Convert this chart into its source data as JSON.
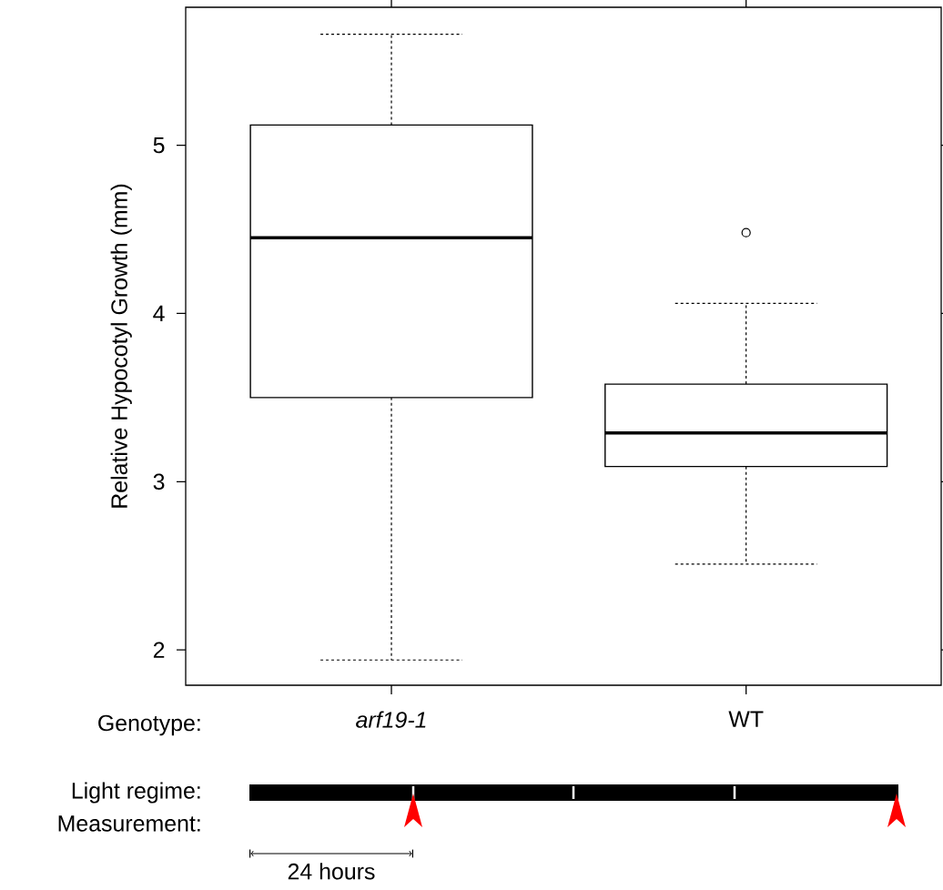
{
  "chart_data": {
    "type": "box",
    "ylabel": "Relative Hypocotyl Growth (mm)",
    "categories": [
      "*arf19-1*",
      "WT"
    ],
    "boxes": [
      {
        "low": 1.94,
        "q1": 3.5,
        "median": 4.45,
        "q3": 5.12,
        "high": 5.66
      },
      {
        "low": 2.51,
        "q1": 3.09,
        "median": 3.29,
        "q3": 3.58,
        "high": 4.06,
        "outliers": [
          4.48
        ]
      }
    ],
    "ylim": [
      1.79,
      5.82
    ],
    "yticks": [
      2,
      3,
      4,
      5
    ],
    "annotations": [
      "Genotype:",
      "Light regime:",
      "Measurement:",
      "24 hours"
    ]
  }
}
